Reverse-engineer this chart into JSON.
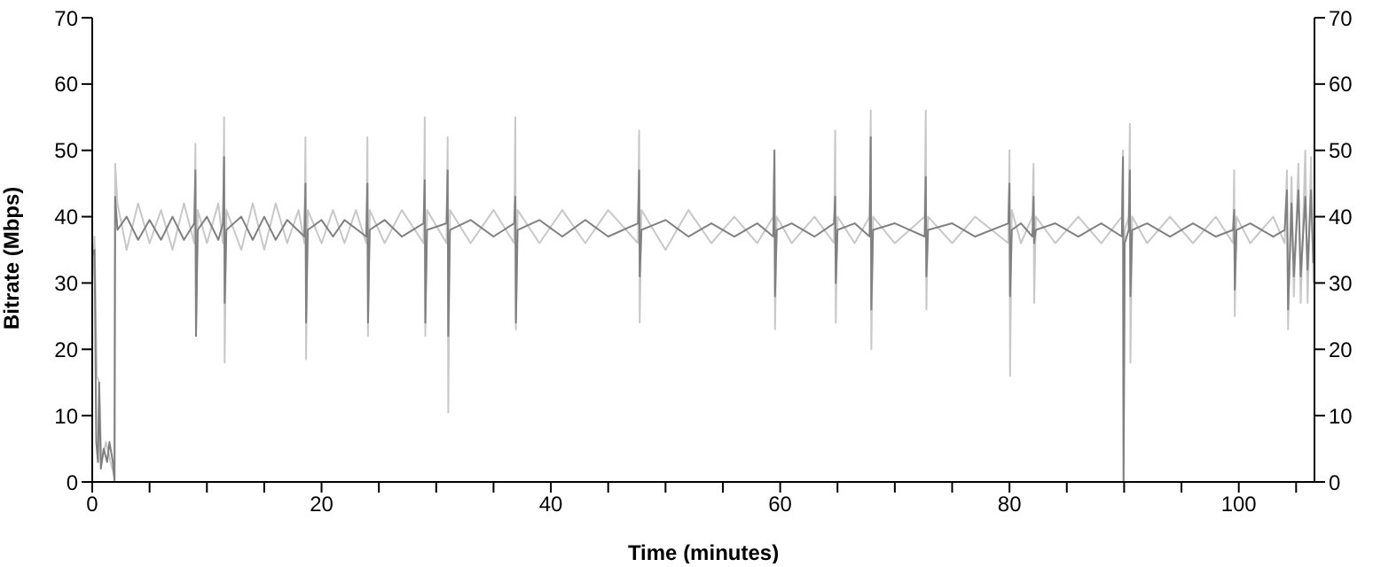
{
  "chart_data": {
    "type": "line",
    "xlabel": "Time (minutes)",
    "ylabel": "Bitrate (Mbps)",
    "xlim": [
      0,
      106.6
    ],
    "xticks": [
      0,
      {
        "value": 5,
        "label": null
      },
      {
        "value": 10,
        "label": null
      },
      {
        "value": 15,
        "label": null
      },
      20,
      {
        "value": 25,
        "label": null
      },
      {
        "value": 30,
        "label": null
      },
      {
        "value": 35,
        "label": null
      },
      40,
      {
        "value": 45,
        "label": null
      },
      {
        "value": 50,
        "label": null
      },
      {
        "value": 55,
        "label": null
      },
      60,
      {
        "value": 65,
        "label": null
      },
      {
        "value": 70,
        "label": null
      },
      {
        "value": 75,
        "label": null
      },
      80,
      {
        "value": 85,
        "label": null
      },
      {
        "value": 90,
        "label": null
      },
      {
        "value": 95,
        "label": null
      },
      100,
      {
        "value": 105,
        "label": null
      }
    ],
    "ylim": [
      0,
      70
    ],
    "yticks": [
      0,
      10,
      20,
      30,
      40,
      50,
      60,
      70
    ],
    "y2lim": [
      0,
      70
    ],
    "y2ticks": [
      0,
      10,
      20,
      30,
      40,
      50,
      60,
      70
    ],
    "grid": false,
    "legend": false,
    "marker": "none",
    "line_style": "solid",
    "series": [
      {
        "color": "#c8c8c8",
        "x": [
          0,
          0.2,
          0.4,
          0.6,
          0.8,
          1.2,
          1.6,
          1.9,
          2.0,
          2.2,
          3,
          4,
          5,
          6,
          7,
          8,
          8.9,
          9,
          9.05,
          9.2,
          10,
          11,
          11.4,
          11.5,
          11.55,
          11.7,
          13,
          14,
          15,
          16,
          17,
          18,
          18.5,
          18.6,
          18.65,
          18.8,
          20,
          21,
          22,
          23,
          23.9,
          24,
          24.05,
          24.2,
          25.5,
          27,
          28.9,
          29,
          29.05,
          29.2,
          30.9,
          31,
          31.05,
          31.2,
          33,
          35,
          36.8,
          36.9,
          36.95,
          37.1,
          39,
          41,
          43,
          45,
          47.6,
          47.7,
          47.75,
          47.9,
          50,
          52,
          54,
          56,
          58,
          59.4,
          59.5,
          59.55,
          59.7,
          61,
          63,
          64.7,
          64.8,
          64.85,
          65,
          66.5,
          67.8,
          67.9,
          67.95,
          68.1,
          70,
          72.6,
          72.7,
          72.75,
          72.9,
          75,
          77,
          79.9,
          80,
          80.05,
          80.2,
          81,
          82,
          82.1,
          82.15,
          82.3,
          84,
          86,
          88,
          89.8,
          89.9,
          89.95,
          90.05,
          90.4,
          90.5,
          90.55,
          90.7,
          92,
          94,
          96,
          98,
          99.5,
          99.6,
          99.65,
          99.8,
          101,
          103,
          104,
          104.2,
          104.3,
          104.6,
          104.8,
          105.2,
          105.4,
          105.8,
          106,
          106.3,
          106.5
        ],
        "values": [
          30,
          37,
          16,
          15,
          3,
          6,
          3,
          1,
          48,
          42,
          35,
          42,
          36,
          41,
          35,
          42,
          36,
          51,
          22,
          41,
          36,
          42,
          36,
          55,
          18,
          41,
          35,
          42,
          35,
          42,
          36,
          41,
          36,
          52,
          18.5,
          41,
          36,
          41,
          36,
          41,
          36,
          52,
          22,
          41,
          36,
          41,
          36,
          55,
          22,
          41,
          36,
          52,
          10.5,
          41,
          36,
          41,
          36,
          55,
          23,
          41,
          36,
          41,
          36,
          41,
          36,
          53,
          24,
          41,
          35,
          41,
          36,
          40,
          36,
          40,
          50,
          23,
          40,
          36,
          40,
          36,
          53,
          24,
          40,
          36,
          40,
          56,
          20,
          40,
          36,
          40,
          56,
          26,
          40,
          36,
          40,
          36,
          50,
          16,
          41,
          36,
          40,
          48,
          27,
          40,
          36,
          40,
          36,
          40,
          50,
          0,
          38,
          40,
          54,
          18,
          40,
          36,
          40,
          36,
          40,
          36,
          47,
          25,
          40,
          36,
          40,
          36,
          47,
          23,
          46,
          28,
          48,
          27,
          50,
          27,
          49,
          30
        ]
      },
      {
        "color": "#808080",
        "x": [
          0,
          0.2,
          0.35,
          0.5,
          0.6,
          0.75,
          1.0,
          1.3,
          1.5,
          1.8,
          1.95,
          2.0,
          2.2,
          3,
          4,
          5,
          6,
          7,
          8,
          8.9,
          9,
          9.05,
          9.2,
          10,
          11,
          11.4,
          11.5,
          11.55,
          11.7,
          13,
          14,
          15,
          16,
          17,
          18.5,
          18.6,
          18.65,
          18.8,
          20,
          21,
          22,
          23.9,
          24,
          24.05,
          24.2,
          25.5,
          27,
          28.9,
          29,
          29.05,
          29.2,
          30.9,
          31,
          31.05,
          31.2,
          33,
          35,
          36.8,
          36.9,
          36.95,
          37.1,
          39,
          41,
          43,
          45,
          47.6,
          47.7,
          47.75,
          47.9,
          50,
          52,
          54,
          56,
          58,
          59.4,
          59.5,
          59.55,
          59.7,
          61,
          63,
          64.7,
          64.8,
          64.85,
          65,
          66.5,
          67.8,
          67.9,
          67.95,
          68.1,
          70,
          72.6,
          72.7,
          72.75,
          72.9,
          75,
          77,
          79.9,
          80,
          80.05,
          80.2,
          81,
          82,
          82.1,
          82.15,
          82.3,
          84,
          86,
          88,
          89.8,
          89.9,
          89.95,
          90.05,
          90.4,
          90.5,
          90.55,
          90.7,
          92,
          94,
          96,
          98,
          99.5,
          99.6,
          99.65,
          99.8,
          101,
          103,
          104,
          104.2,
          104.3,
          104.6,
          104.8,
          105.2,
          105.4,
          105.8,
          106,
          106.3,
          106.5
        ],
        "values": [
          34,
          35,
          6,
          3,
          15,
          2,
          5,
          3,
          6,
          3,
          0,
          43,
          38,
          40,
          36.5,
          39.5,
          36.5,
          40,
          36.5,
          39,
          47,
          22,
          38,
          40,
          36.5,
          39,
          49,
          27,
          38,
          40,
          36.5,
          40,
          36.5,
          39.5,
          37,
          45,
          24,
          38,
          39.5,
          37,
          39.5,
          37,
          45,
          24,
          38,
          39.5,
          37,
          39,
          45.5,
          24,
          38,
          39,
          47,
          22,
          38,
          39.5,
          37,
          39,
          43,
          24,
          38,
          39.5,
          37,
          39.5,
          37,
          39,
          47,
          31,
          38,
          39.5,
          37,
          39,
          37,
          39,
          37,
          50,
          28,
          38,
          39,
          37,
          39,
          43,
          30,
          38,
          39,
          37,
          52,
          26,
          38,
          39,
          37,
          46,
          31,
          38,
          39,
          37,
          39,
          45,
          28,
          38,
          39,
          37,
          43,
          36,
          38,
          39,
          37,
          39,
          37,
          49,
          0,
          36,
          38,
          47,
          28,
          38,
          39,
          37,
          39,
          37,
          38,
          41,
          29,
          38,
          39,
          37,
          38,
          44,
          26,
          42,
          31,
          44,
          31,
          43,
          32,
          44,
          33
        ]
      }
    ]
  }
}
